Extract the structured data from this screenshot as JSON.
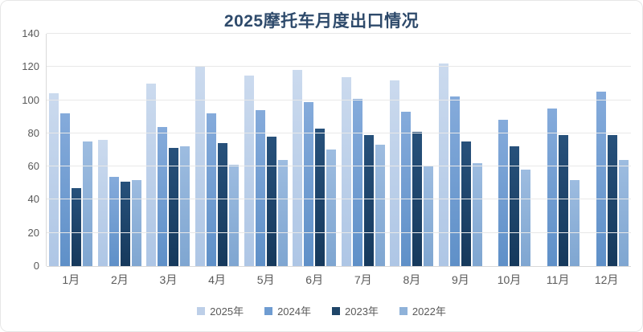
{
  "chart_data": {
    "type": "bar",
    "title": "2025摩托车月度出口情况",
    "categories": [
      "1月",
      "2月",
      "3月",
      "4月",
      "5月",
      "6月",
      "7月",
      "8月",
      "9月",
      "10月",
      "11月",
      "12月"
    ],
    "series": [
      {
        "name": "2025年",
        "color": "#bdcfe8",
        "values": [
          104,
          76,
          110,
          120,
          115,
          118,
          114,
          112,
          122,
          null,
          null,
          null
        ]
      },
      {
        "name": "2024年",
        "color": "#6f9cd1",
        "values": [
          92,
          54,
          84,
          92,
          94,
          99,
          101,
          93,
          102,
          88,
          95,
          105
        ]
      },
      {
        "name": "2023年",
        "color": "#1f4568",
        "values": [
          47,
          51,
          71,
          74,
          78,
          83,
          79,
          81,
          75,
          72,
          79,
          79
        ]
      },
      {
        "name": "2022年",
        "color": "#8fb2d9",
        "values": [
          75,
          52,
          72,
          61,
          64,
          70,
          73,
          60,
          62,
          58,
          52,
          64
        ]
      }
    ],
    "xlabel": "",
    "ylabel": "",
    "ylim": [
      0,
      140
    ],
    "yticks": [
      0,
      20,
      40,
      60,
      80,
      100,
      120,
      140
    ],
    "grid": true,
    "legend_position": "bottom",
    "colors": {
      "title_text": "#2e4a6b",
      "axis_text": "#595959",
      "gridline": "#e8e8e8"
    }
  }
}
